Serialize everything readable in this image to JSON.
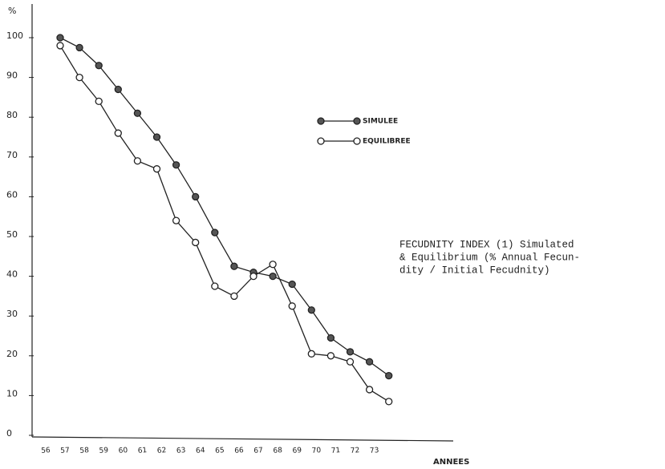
{
  "chart_data": {
    "type": "line",
    "ylabel": "%",
    "xlabel": "ANNEES",
    "categories": [
      "56",
      "57",
      "58",
      "59",
      "60",
      "61",
      "62",
      "63",
      "64",
      "65",
      "66",
      "67",
      "68",
      "69",
      "70",
      "71",
      "72",
      "73"
    ],
    "series": [
      {
        "name": "SIMULEE",
        "color": "#222222",
        "marker": "filled",
        "values": [
          100,
          97.5,
          93,
          87,
          81,
          75,
          68,
          60,
          51,
          42.5,
          41,
          40,
          38,
          31.5,
          24.5,
          21,
          18.5,
          15
        ]
      },
      {
        "name": "EQUILIBREE",
        "color": "#222222",
        "marker": "open",
        "values": [
          98,
          90,
          84,
          76,
          69,
          67,
          54,
          48.5,
          37.5,
          35,
          40,
          43,
          32.5,
          20.5,
          20,
          18.5,
          11.5,
          8.5
        ]
      }
    ],
    "ylim": [
      0,
      100
    ],
    "yticks": [
      0,
      10,
      20,
      30,
      40,
      50,
      60,
      70,
      80,
      90,
      100
    ],
    "annotation": [
      "FECUDNITY INDEX (1) Simulated",
      "& Equilibrium (% Annual Fecun-",
      "dity / Initial Fecudnity)"
    ]
  }
}
